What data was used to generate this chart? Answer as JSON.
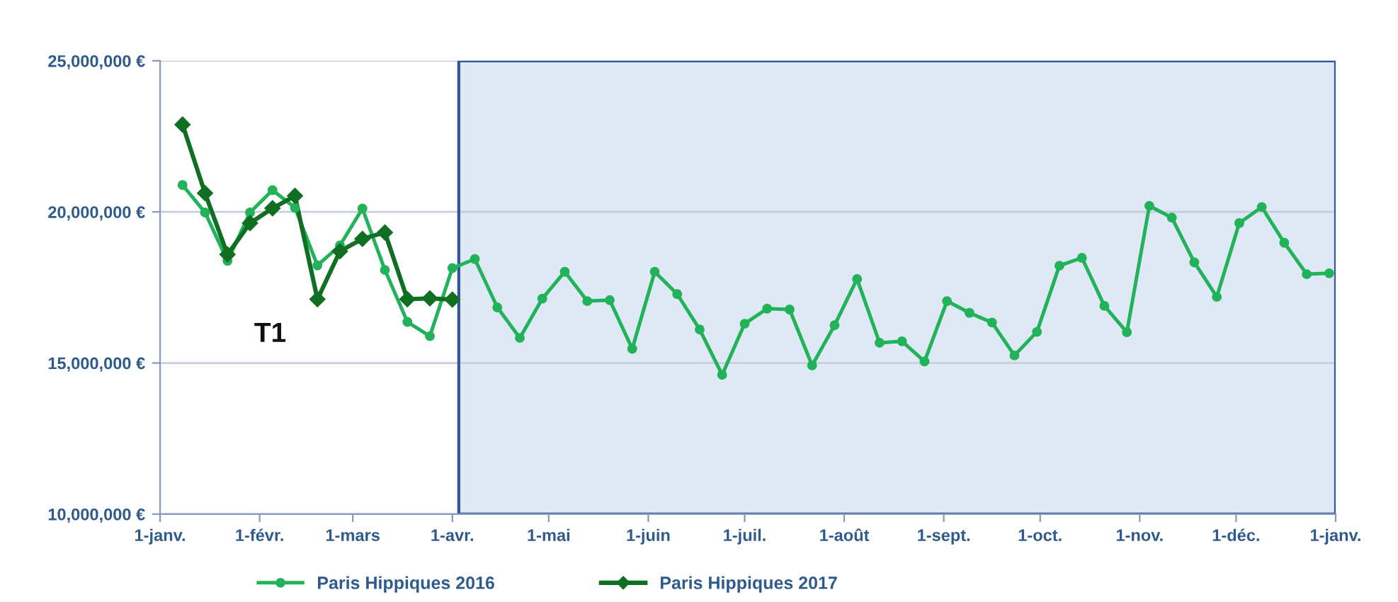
{
  "chart_data": {
    "type": "line",
    "x": [
      "2016-01-08",
      "2016-01-15",
      "2016-01-22",
      "2016-01-29",
      "2016-02-05",
      "2016-02-12",
      "2016-02-19",
      "2016-02-26",
      "2016-03-04",
      "2016-03-11",
      "2016-03-18",
      "2016-03-25",
      "2016-04-01",
      "2016-04-08",
      "2016-04-15",
      "2016-04-22",
      "2016-04-29",
      "2016-05-06",
      "2016-05-13",
      "2016-05-20",
      "2016-05-27",
      "2016-06-03",
      "2016-06-10",
      "2016-06-17",
      "2016-06-24",
      "2016-07-01",
      "2016-07-08",
      "2016-07-15",
      "2016-07-22",
      "2016-07-29",
      "2016-08-05",
      "2016-08-12",
      "2016-08-19",
      "2016-08-26",
      "2016-09-02",
      "2016-09-09",
      "2016-09-16",
      "2016-09-23",
      "2016-09-30",
      "2016-10-07",
      "2016-10-14",
      "2016-10-21",
      "2016-10-28",
      "2016-11-04",
      "2016-11-11",
      "2016-11-18",
      "2016-11-25",
      "2016-12-02",
      "2016-12-09",
      "2016-12-16",
      "2016-12-23",
      "2016-12-30"
    ],
    "series": [
      {
        "name": "Paris Hippiques 2016",
        "color": "#22b35a",
        "marker": "circle",
        "values": [
          20890000,
          19980000,
          18380000,
          19980000,
          20720000,
          20140000,
          18230000,
          18890000,
          20110000,
          18080000,
          16360000,
          15890000,
          18140000,
          18440000,
          16840000,
          15830000,
          17130000,
          18020000,
          17050000,
          17080000,
          15470000,
          18020000,
          17280000,
          16110000,
          14610000,
          16300000,
          16800000,
          16770000,
          14920000,
          16250000,
          17780000,
          15670000,
          15720000,
          15050000,
          17050000,
          16660000,
          16340000,
          15250000,
          16030000,
          18220000,
          18480000,
          16890000,
          16020000,
          20200000,
          19810000,
          18330000,
          17190000,
          19630000,
          20160000,
          18980000,
          17940000,
          17970000
        ]
      },
      {
        "name": "Paris Hippiques 2017",
        "color": "#106f22",
        "marker": "diamond",
        "x": [
          "2016-01-08",
          "2016-01-15",
          "2016-01-22",
          "2016-01-29",
          "2016-02-05",
          "2016-02-12",
          "2016-02-19",
          "2016-02-26",
          "2016-03-04",
          "2016-03-11",
          "2016-03-18",
          "2016-03-25",
          "2016-04-01"
        ],
        "values": [
          22890000,
          20620000,
          18590000,
          19630000,
          20120000,
          20530000,
          17110000,
          18700000,
          19110000,
          19320000,
          17110000,
          17140000,
          17100000
        ]
      }
    ],
    "xlim": [
      "2016-01-01",
      "2017-01-01"
    ],
    "xticks": [
      {
        "value": "2016-01-01",
        "label": "1-janv."
      },
      {
        "value": "2016-02-01",
        "label": "1-févr."
      },
      {
        "value": "2016-03-01",
        "label": "1-mars"
      },
      {
        "value": "2016-04-01",
        "label": "1-avr."
      },
      {
        "value": "2016-05-01",
        "label": "1-mai"
      },
      {
        "value": "2016-06-01",
        "label": "1-juin"
      },
      {
        "value": "2016-07-01",
        "label": "1-juil."
      },
      {
        "value": "2016-08-01",
        "label": "1-août"
      },
      {
        "value": "2016-09-01",
        "label": "1-sept."
      },
      {
        "value": "2016-10-01",
        "label": "1-oct."
      },
      {
        "value": "2016-11-01",
        "label": "1-nov."
      },
      {
        "value": "2016-12-01",
        "label": "1-déc."
      },
      {
        "value": "2017-01-01",
        "label": "1-janv."
      }
    ],
    "ylim": [
      10000000,
      25000000
    ],
    "yticks": [
      {
        "value": 10000000,
        "label": "10,000,000 €"
      },
      {
        "value": 15000000,
        "label": "15,000,000 €"
      },
      {
        "value": 20000000,
        "label": "20,000,000 €"
      },
      {
        "value": 25000000,
        "label": "25,000,000 €"
      }
    ],
    "bands": [
      {
        "axis": "x",
        "from": "2016-04-03",
        "to": "2017-01-01",
        "color": "#dfe9f5"
      }
    ],
    "annotations": [
      "T1"
    ],
    "grid": "y",
    "legend": "bottom",
    "line_style": "solid"
  }
}
